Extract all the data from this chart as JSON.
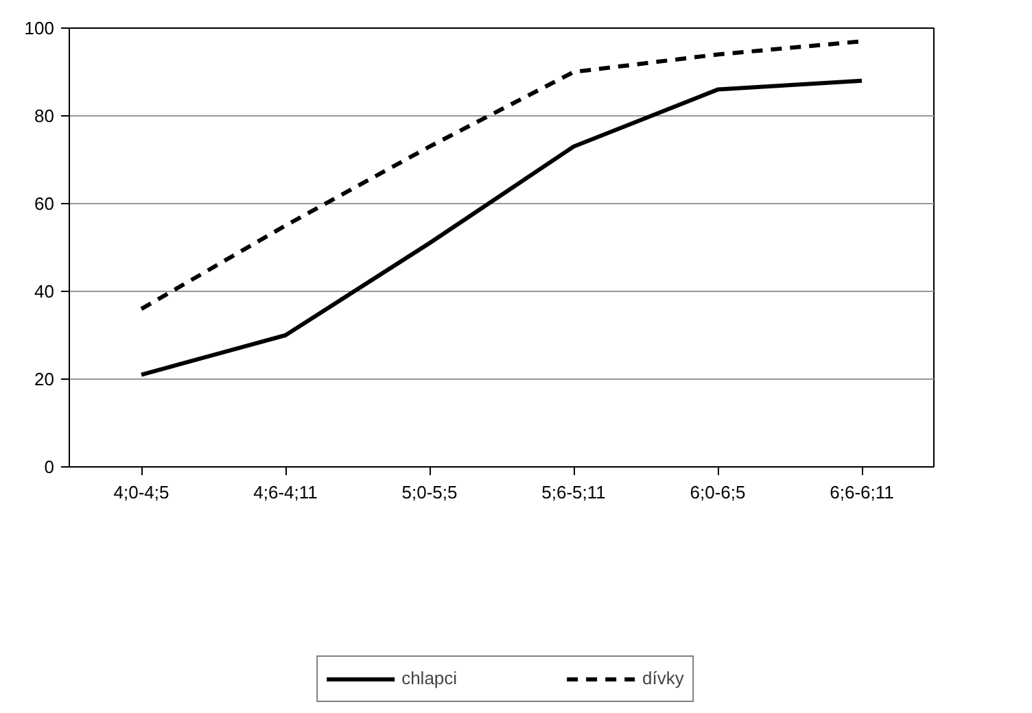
{
  "chart_data": {
    "type": "line",
    "categories": [
      "4;0-4;5",
      "4;6-4;11",
      "5;0-5;5",
      "5;6-5;11",
      "6;0-6;5",
      "6;6-6;11"
    ],
    "series": [
      {
        "name": "chlapci",
        "color": "#000000",
        "values": [
          21,
          30,
          51,
          73,
          86,
          88
        ],
        "line_style": "solid"
      },
      {
        "name": "dívky",
        "color": "#000000",
        "values": [
          36,
          55,
          73,
          90,
          94,
          97
        ],
        "line_style": "dashed"
      }
    ],
    "ylim": [
      0,
      100
    ],
    "yticks": [
      0,
      20,
      40,
      60,
      80,
      100
    ],
    "grid": "y",
    "legend": "bottom",
    "marker": "none"
  }
}
